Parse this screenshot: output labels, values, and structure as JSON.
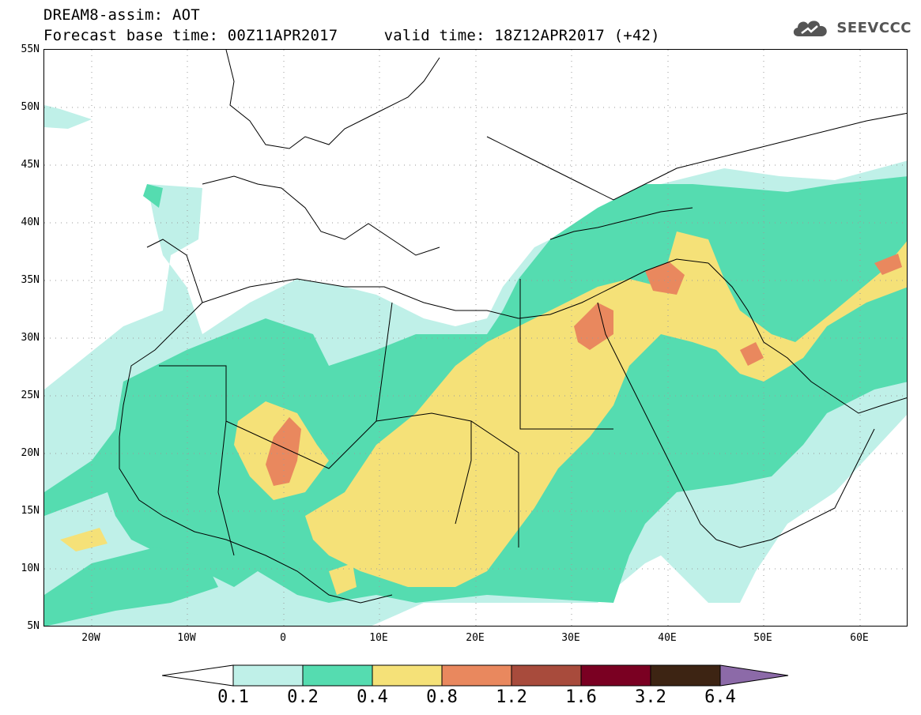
{
  "title": {
    "line1": "DREAM8-assim: AOT",
    "line2": "Forecast base time: 00Z11APR2017     valid time: 18Z12APR2017 (+42)"
  },
  "logo": {
    "text": "SEEVCCC",
    "icon": "cloud-icon"
  },
  "map": {
    "lat_labels": [
      "55N",
      "50N",
      "45N",
      "40N",
      "35N",
      "30N",
      "25N",
      "20N",
      "15N",
      "10N",
      "5N"
    ],
    "lon_labels": [
      "20W",
      "10W",
      "0",
      "10E",
      "20E",
      "30E",
      "40E",
      "50E",
      "60E"
    ],
    "lat_range": [
      5,
      55
    ],
    "lon_range": [
      -25,
      65
    ],
    "gridlines": "dotted"
  },
  "colorbar": {
    "labels": [
      "0.1",
      "0.2",
      "0.4",
      "0.8",
      "1.2",
      "1.6",
      "3.2",
      "6.4"
    ],
    "colors": [
      "#ffffff",
      "#bff0e8",
      "#55dcb0",
      "#f5e178",
      "#e9885e",
      "#a84b3c",
      "#7a0022",
      "#3d2413",
      "#8c6aa8"
    ]
  },
  "colors": {
    "level_0_1": "#bff0e8",
    "level_0_2": "#55dcb0",
    "level_0_4": "#f5e178",
    "level_0_8": "#e9885e",
    "level_1_2": "#a84b3c"
  }
}
